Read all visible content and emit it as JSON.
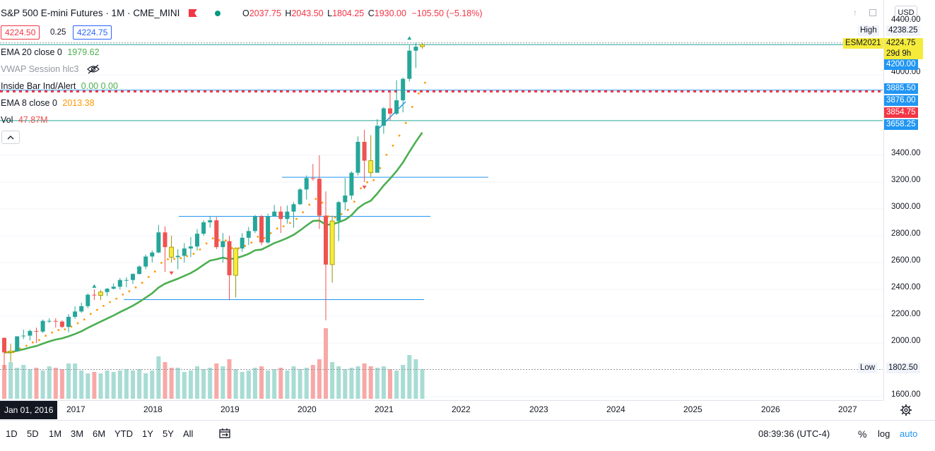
{
  "header": {
    "title": "S&P 500 E-mini Futures · 1M · CME_MINI",
    "ohlc": [
      {
        "k": "O",
        "v": "2037.75"
      },
      {
        "k": "H",
        "v": "2043.50"
      },
      {
        "k": "L",
        "v": "1804.25"
      },
      {
        "k": "C",
        "v": "1930.00"
      }
    ],
    "change": "−105.50 (−5.18%)",
    "currency": "USD"
  },
  "trade": {
    "sell": "4224.50",
    "spread": "0.25",
    "buy": "4224.75"
  },
  "indicators": [
    {
      "name": "EMA 20 close 0",
      "value": "1979.62",
      "color": "#4caf50"
    },
    {
      "name": "VWAP Session hlc3",
      "value": "",
      "color": "#787b86"
    },
    {
      "name": "Inside Bar Ind/Alert",
      "value": "0.00  0.00",
      "color": "#4caf50"
    },
    {
      "name": "EMA 8 close 0",
      "value": "2013.38",
      "color": "#ff9800"
    },
    {
      "name": "Vol",
      "value": "47.87M",
      "color": "#ef5350"
    }
  ],
  "price_scale": {
    "ticks": [
      "4400.00",
      "4000.00",
      "3400.00",
      "3200.00",
      "3000.00",
      "2800.00",
      "2600.00",
      "2400.00",
      "2200.00",
      "2000.00",
      "1600.00"
    ],
    "labels": {
      "high": {
        "k": "High",
        "v": "4238.25"
      },
      "symbol": "ESM2021",
      "last": "4224.75",
      "countdown": "29d 9h",
      "l4200": "4200.00",
      "l3885": "3885.50",
      "l3876": "3876.00",
      "l3854": "3854.75",
      "l3658": "3658.25",
      "low": {
        "k": "Low",
        "v": "1802.50"
      }
    }
  },
  "time_scale": {
    "start": "Jan 01, 2016",
    "years": [
      "2017",
      "2018",
      "2019",
      "2020",
      "2021",
      "2022",
      "2023",
      "2024",
      "2025",
      "2026",
      "2027"
    ]
  },
  "ranges": [
    "1D",
    "5D",
    "1M",
    "3M",
    "6M",
    "YTD",
    "1Y",
    "5Y",
    "All"
  ],
  "footer": {
    "time": "08:39:36 (UTC-4)",
    "percent": "%",
    "log": "log",
    "auto": "auto"
  },
  "colors": {
    "up": "#26a69a",
    "down": "#ef5350",
    "inside": "#f5eb3b",
    "ema20": "#4caf50",
    "ema8": "#ff9800",
    "line": "#2962ff",
    "accent": "#2196f3"
  },
  "chart_data": {
    "type": "candlestick",
    "x_start": "2016-01",
    "interval": "1M",
    "ohlc": [
      [
        2038,
        2043,
        1804,
        1930
      ],
      [
        1930,
        1993,
        1860,
        1940
      ],
      [
        1940,
        2050,
        1935,
        2050
      ],
      [
        2050,
        2100,
        2030,
        2055
      ],
      [
        2055,
        2100,
        2020,
        2090
      ],
      [
        2090,
        2115,
        2000,
        2085
      ],
      [
        2085,
        2175,
        2075,
        2165
      ],
      [
        2165,
        2185,
        2150,
        2165
      ],
      [
        2165,
        2185,
        2115,
        2160
      ],
      [
        2160,
        2170,
        2110,
        2120
      ],
      [
        2120,
        2215,
        2080,
        2195
      ],
      [
        2195,
        2275,
        2180,
        2235
      ],
      [
        2235,
        2300,
        2225,
        2275
      ],
      [
        2275,
        2370,
        2260,
        2360
      ],
      [
        2360,
        2400,
        2320,
        2355
      ],
      [
        2355,
        2395,
        2320,
        2380
      ],
      [
        2380,
        2410,
        2350,
        2405
      ],
      [
        2405,
        2445,
        2400,
        2420
      ],
      [
        2420,
        2485,
        2400,
        2470
      ],
      [
        2470,
        2490,
        2415,
        2470
      ],
      [
        2470,
        2520,
        2440,
        2515
      ],
      [
        2515,
        2580,
        2510,
        2570
      ],
      [
        2570,
        2660,
        2550,
        2645
      ],
      [
        2645,
        2690,
        2600,
        2675
      ],
      [
        2675,
        2880,
        2670,
        2825
      ],
      [
        2825,
        2870,
        2530,
        2715
      ],
      [
        2715,
        2800,
        2600,
        2640
      ],
      [
        2640,
        2700,
        2550,
        2650
      ],
      [
        2650,
        2745,
        2600,
        2705
      ],
      [
        2705,
        2790,
        2640,
        2720
      ],
      [
        2720,
        2850,
        2690,
        2815
      ],
      [
        2815,
        2915,
        2800,
        2900
      ],
      [
        2900,
        2945,
        2860,
        2915
      ],
      [
        2915,
        2940,
        2700,
        2715
      ],
      [
        2715,
        2820,
        2600,
        2760
      ],
      [
        2760,
        2800,
        2320,
        2505
      ],
      [
        2505,
        2715,
        2340,
        2705
      ],
      [
        2705,
        2820,
        2680,
        2785
      ],
      [
        2785,
        2865,
        2730,
        2835
      ],
      [
        2835,
        2955,
        2820,
        2945
      ],
      [
        2945,
        2955,
        2730,
        2750
      ],
      [
        2750,
        2965,
        2740,
        2945
      ],
      [
        2945,
        3030,
        2955,
        2980
      ],
      [
        2980,
        3020,
        2820,
        2925
      ],
      [
        2925,
        3025,
        2890,
        2980
      ],
      [
        2980,
        3050,
        2860,
        3035
      ],
      [
        3035,
        3155,
        3030,
        3145
      ],
      [
        3145,
        3250,
        3070,
        3230
      ],
      [
        3230,
        3335,
        3210,
        3225
      ],
      [
        3225,
        3400,
        2850,
        2950
      ],
      [
        2950,
        3130,
        2170,
        2585
      ],
      [
        2585,
        2950,
        2450,
        2910
      ],
      [
        2910,
        3060,
        2760,
        3050
      ],
      [
        3050,
        3230,
        2990,
        3100
      ],
      [
        3100,
        3280,
        3070,
        3270
      ],
      [
        3270,
        3540,
        3250,
        3500
      ],
      [
        3500,
        3590,
        3200,
        3360
      ],
      [
        3360,
        3550,
        3240,
        3270
      ],
      [
        3270,
        3670,
        3270,
        3620
      ],
      [
        3620,
        3760,
        3560,
        3750
      ],
      [
        3750,
        3870,
        3660,
        3710
      ],
      [
        3710,
        3960,
        3700,
        3810
      ],
      [
        3810,
        3980,
        3720,
        3970
      ],
      [
        3970,
        4220,
        3950,
        4180
      ],
      [
        4180,
        4240,
        4050,
        4210
      ],
      [
        4210,
        4238,
        4195,
        4225
      ]
    ],
    "ema20_last": 1979.62,
    "ema8_last": 2013.38,
    "volume_last": "47.87M",
    "ylim": [
      1550,
      4420
    ]
  }
}
